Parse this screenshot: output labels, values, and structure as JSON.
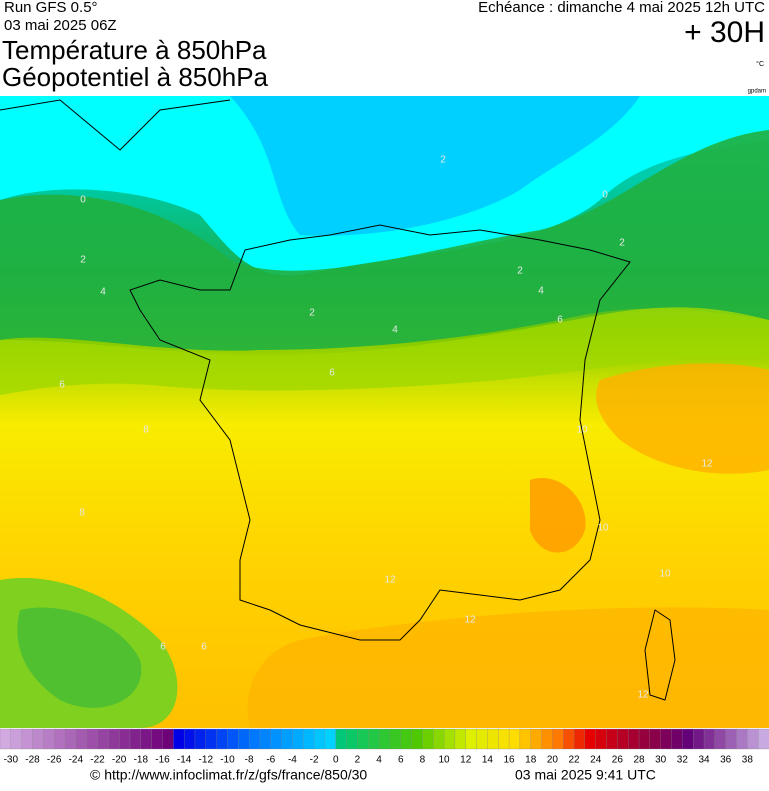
{
  "header": {
    "run": "Run GFS 0.5°",
    "run_date": "03 mai 2025 06Z",
    "echeance": "Echéance : dimanche 4 mai 2025 12h UTC",
    "lead": "+ 30H",
    "title_line1": "Température à 850hPa",
    "title_line2": "Géopotentiel à 850hPa",
    "unit": "°C",
    "credit": "gpdam"
  },
  "map": {
    "contour_labels": [
      "0",
      "2",
      "0",
      "2",
      "2",
      "4",
      "2",
      "2",
      "4",
      "4",
      "6",
      "6",
      "6",
      "8",
      "8",
      "10",
      "12",
      "10",
      "10",
      "12",
      "6",
      "6",
      "12",
      "12"
    ]
  },
  "colorbar": {
    "labels": [
      "-30",
      "-28",
      "-26",
      "-24",
      "-22",
      "-20",
      "-18",
      "-16",
      "-14",
      "-12",
      "-10",
      "-8",
      "-6",
      "-4",
      "-2",
      "0",
      "2",
      "4",
      "6",
      "8",
      "10",
      "12",
      "14",
      "16",
      "18",
      "20",
      "22",
      "24",
      "26",
      "28",
      "30",
      "32",
      "34",
      "36",
      "38"
    ]
  },
  "footer": {
    "url": "© http://www.infoclimat.fr/z/gfs/france/850/30",
    "timestamp": "03 mai 2025  9:41 UTC"
  }
}
